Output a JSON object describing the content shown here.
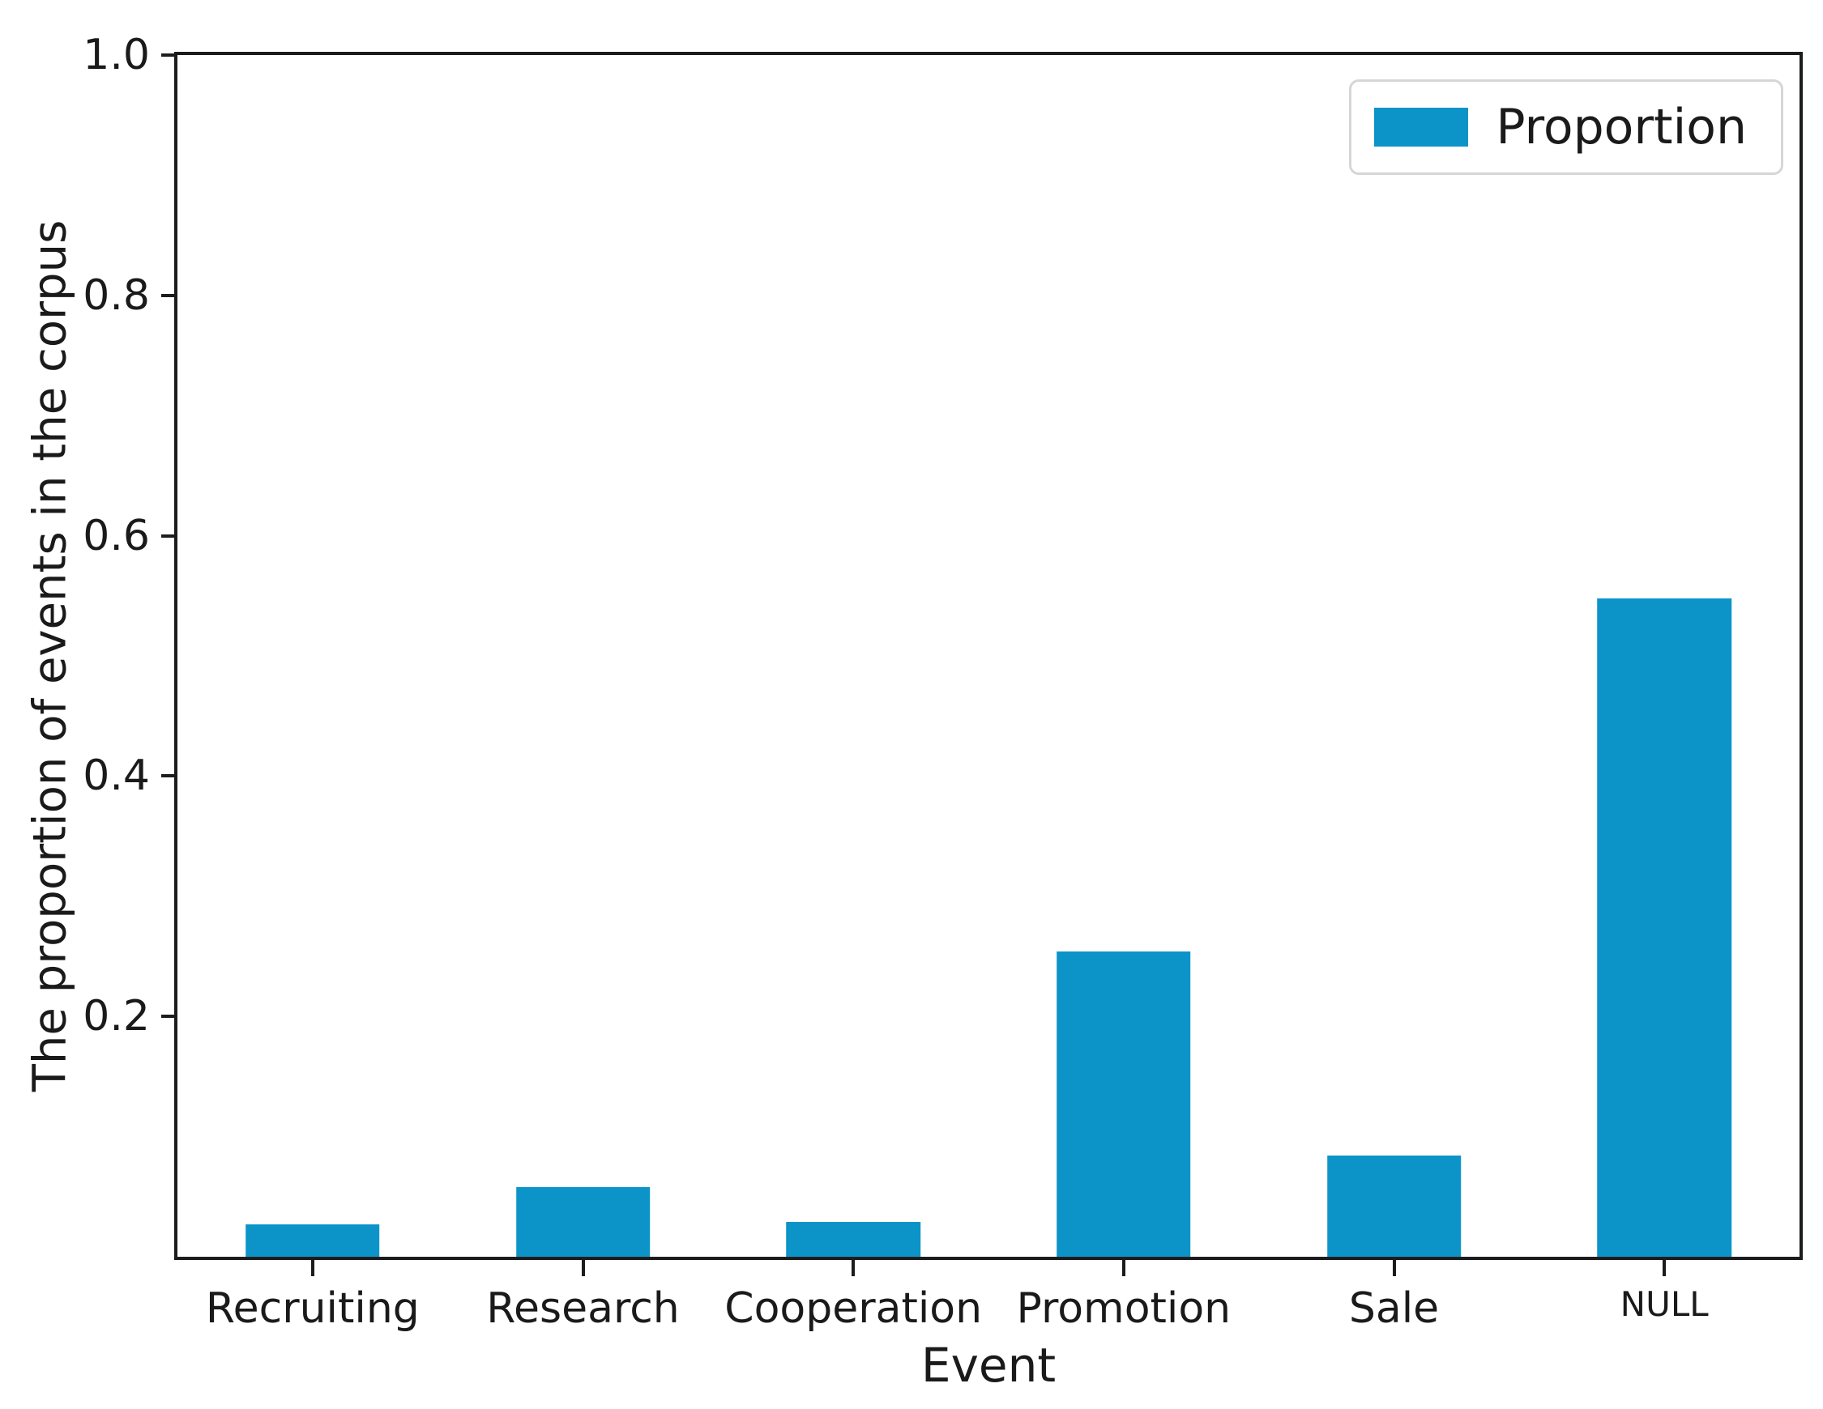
{
  "chart_data": {
    "type": "bar",
    "title": "",
    "xlabel": "Event",
    "ylabel": "The proportion of events in the corpus",
    "categories": [
      "Recruiting",
      "Research",
      "Cooperation",
      "Promotion",
      "Sale",
      "NULL"
    ],
    "series": [
      {
        "name": "Proportion",
        "values": [
          0.027,
          0.058,
          0.029,
          0.254,
          0.084,
          0.548
        ]
      }
    ],
    "ylim": [
      0,
      1.0
    ],
    "yticks": [
      "0.2",
      "0.4",
      "0.6",
      "0.8",
      "1.0"
    ],
    "grid": false,
    "legend": {
      "label": "Proportion",
      "position": "upper right"
    },
    "bar_color": "#0c94c8"
  },
  "colors": {
    "bar": "#0c94c8",
    "axis": "#1c1c1c",
    "text": "#1a1a1a",
    "legend_border": "#d6d6d6",
    "background": "#ffffff"
  }
}
